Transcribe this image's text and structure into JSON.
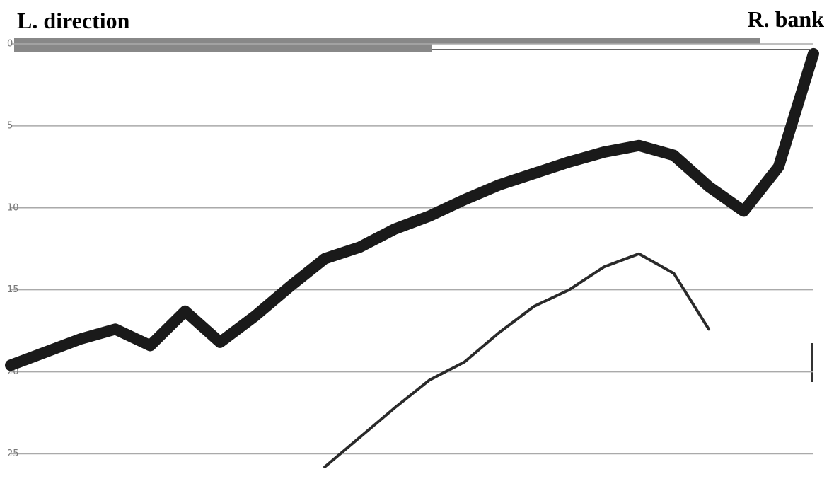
{
  "chart_data": {
    "type": "line",
    "title": "L. direction",
    "subtitle": "R. bank",
    "categories": [
      null,
      null,
      null,
      null,
      null,
      null,
      null,
      null,
      null,
      null,
      null,
      null,
      null,
      null,
      null,
      null,
      null,
      null,
      null,
      null,
      null,
      null,
      null,
      null
    ],
    "series": [
      {
        "color": "#1a1a1a",
        "values": [
          19.6,
          18.8,
          18.0,
          17.4,
          18.4,
          16.3,
          18.2,
          16.6,
          14.8,
          13.1,
          12.4,
          11.3,
          10.5,
          9.5,
          8.6,
          7.9,
          7.2,
          6.6,
          6.2,
          6.8,
          8.7,
          10.2,
          7.5,
          0.6
        ]
      },
      {
        "color": "#2a2a2a",
        "values": [
          null,
          null,
          null,
          null,
          null,
          null,
          null,
          null,
          null,
          25.8,
          24.0,
          22.2,
          20.5,
          19.4,
          17.6,
          16.0,
          15.0,
          13.6,
          12.8,
          14.0,
          17.4,
          null,
          null,
          null
        ]
      }
    ],
    "ylim": [
      0,
      28
    ],
    "inverted": true,
    "yticks": [
      0,
      5,
      10,
      15,
      20,
      25
    ],
    "grid": true
  }
}
